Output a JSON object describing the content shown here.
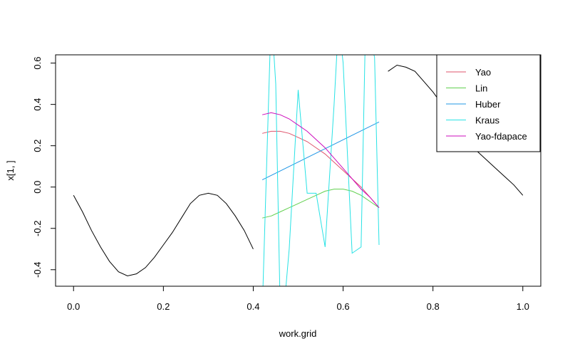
{
  "chart_data": {
    "type": "line",
    "xlabel": "work.grid",
    "ylabel": "x[1, ]",
    "xlim": [
      -0.04,
      1.04
    ],
    "ylim": [
      -0.48,
      0.64
    ],
    "xticks": [
      0.0,
      0.2,
      0.4,
      0.6,
      0.8,
      1.0
    ],
    "xtick_labels": [
      "0.0",
      "0.2",
      "0.4",
      "0.6",
      "0.8",
      "1.0"
    ],
    "yticks": [
      -0.4,
      -0.2,
      0.0,
      0.2,
      0.4,
      0.6
    ],
    "ytick_labels": [
      "-0.4",
      "-0.2",
      "0.0",
      "0.2",
      "0.4",
      "0.6"
    ],
    "legend_position": "top-right",
    "observed": {
      "color": "#000000",
      "segments": [
        {
          "x": [
            0.0,
            0.02,
            0.04,
            0.06,
            0.08,
            0.1,
            0.12,
            0.14,
            0.16,
            0.18,
            0.2,
            0.22,
            0.24,
            0.26,
            0.28,
            0.3,
            0.32,
            0.34,
            0.36,
            0.38,
            0.4
          ],
          "y": [
            -0.04,
            -0.12,
            -0.21,
            -0.29,
            -0.36,
            -0.41,
            -0.43,
            -0.42,
            -0.39,
            -0.34,
            -0.28,
            -0.22,
            -0.15,
            -0.08,
            -0.04,
            -0.03,
            -0.04,
            -0.08,
            -0.14,
            -0.21,
            -0.3
          ]
        },
        {
          "x": [
            0.7,
            0.72,
            0.74,
            0.76,
            0.78,
            0.8,
            0.82,
            0.84,
            0.86,
            0.88,
            0.9,
            0.92,
            0.94,
            0.96,
            0.98,
            1.0
          ],
          "y": [
            0.56,
            0.59,
            0.58,
            0.56,
            0.51,
            0.46,
            0.4,
            0.33,
            0.27,
            0.21,
            0.17,
            0.13,
            0.09,
            0.05,
            0.01,
            -0.04
          ]
        }
      ]
    },
    "series": [
      {
        "name": "Yao",
        "color": "#DF536B",
        "x": [
          0.42,
          0.44,
          0.46,
          0.48,
          0.5,
          0.52,
          0.54,
          0.56,
          0.58,
          0.6,
          0.62,
          0.64,
          0.66,
          0.68
        ],
        "y": [
          0.26,
          0.27,
          0.27,
          0.26,
          0.24,
          0.22,
          0.19,
          0.16,
          0.12,
          0.08,
          0.04,
          0.0,
          -0.05,
          -0.1
        ]
      },
      {
        "name": "Lin",
        "color": "#61D04F",
        "x": [
          0.42,
          0.44,
          0.46,
          0.48,
          0.5,
          0.52,
          0.54,
          0.56,
          0.58,
          0.6,
          0.62,
          0.64,
          0.66,
          0.68
        ],
        "y": [
          -0.15,
          -0.14,
          -0.12,
          -0.1,
          -0.08,
          -0.06,
          -0.04,
          -0.02,
          -0.01,
          -0.01,
          -0.02,
          -0.04,
          -0.07,
          -0.1
        ]
      },
      {
        "name": "Huber",
        "color": "#2297E6",
        "x": [
          0.42,
          0.68
        ],
        "y": [
          0.035,
          0.315
        ]
      },
      {
        "name": "Kraus",
        "color": "#28E2E5",
        "x": [
          0.42,
          0.44,
          0.45,
          0.46,
          0.47,
          0.48,
          0.5,
          0.52,
          0.54,
          0.56,
          0.58,
          0.59,
          0.6,
          0.62,
          0.64,
          0.65,
          0.66,
          0.67,
          0.68
        ],
        "y": [
          -0.6,
          0.85,
          0.5,
          -0.6,
          -0.55,
          -0.3,
          0.47,
          -0.03,
          -0.03,
          -0.29,
          0.4,
          0.8,
          0.6,
          -0.32,
          -0.29,
          0.8,
          0.7,
          0.63,
          -0.28
        ]
      },
      {
        "name": "Yao-fdapace",
        "color": "#CD0BBC",
        "x": [
          0.42,
          0.44,
          0.46,
          0.48,
          0.5,
          0.52,
          0.54,
          0.56,
          0.58,
          0.6,
          0.62,
          0.64,
          0.66,
          0.68
        ],
        "y": [
          0.35,
          0.36,
          0.35,
          0.33,
          0.3,
          0.27,
          0.23,
          0.19,
          0.14,
          0.09,
          0.04,
          -0.01,
          -0.05,
          -0.1
        ]
      }
    ]
  }
}
